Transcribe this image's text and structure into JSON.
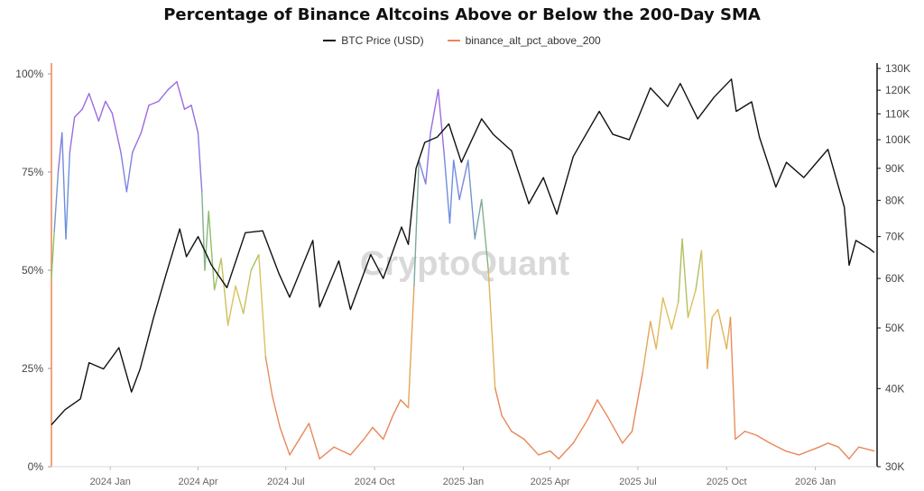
{
  "chart_data": {
    "type": "line",
    "title": "Percentage of Binance Altcoins Above or Below the 200-Day SMA",
    "watermark": "CryptoQuant",
    "legend_position": "top-center",
    "colors": {
      "btc": "#111111",
      "alt_legend": "#e8875a",
      "alt_low": "#e8875a",
      "alt_mid": "#e0c25a",
      "alt_midhigh": "#8cc063",
      "alt_high": "#6b8fe0",
      "alt_top": "#9c6ae0",
      "left_axis": "#e8875a",
      "right_axis": "#111111"
    },
    "x_axis": {
      "start": "2023-11-01",
      "end": "2026-03-06",
      "ticks": [
        {
          "date": "2024-01-01",
          "label": "2024 Jan"
        },
        {
          "date": "2024-04-01",
          "label": "2024 Apr"
        },
        {
          "date": "2024-07-01",
          "label": "2024 Jul"
        },
        {
          "date": "2024-10-01",
          "label": "2024 Oct"
        },
        {
          "date": "2025-01-01",
          "label": "2025 Jan"
        },
        {
          "date": "2025-04-01",
          "label": "2025 Apr"
        },
        {
          "date": "2025-07-01",
          "label": "2025 Jul"
        },
        {
          "date": "2025-10-01",
          "label": "2025 Oct"
        },
        {
          "date": "2026-01-01",
          "label": "2026 Jan"
        }
      ]
    },
    "y_left": {
      "range": [
        0,
        100
      ],
      "ticks": [
        0,
        25,
        50,
        75,
        100
      ],
      "tick_labels": [
        "0%",
        "25%",
        "50%",
        "75%",
        "100%"
      ]
    },
    "y_right": {
      "scale": "log",
      "range": [
        30000,
        130000
      ],
      "ticks": [
        30000,
        40000,
        50000,
        60000,
        70000,
        80000,
        90000,
        100000,
        110000,
        120000,
        130000
      ],
      "tick_labels": [
        "30K",
        "40K",
        "50K",
        "60K",
        "70K",
        "80K",
        "90K",
        "100K",
        "110K",
        "120K",
        "130K"
      ]
    },
    "series": [
      {
        "name": "BTC Price (USD)",
        "axis": "right",
        "points": [
          [
            "2023-11-01",
            35000
          ],
          [
            "2023-11-15",
            37000
          ],
          [
            "2023-12-01",
            38500
          ],
          [
            "2023-12-10",
            44000
          ],
          [
            "2023-12-25",
            43000
          ],
          [
            "2024-01-10",
            46500
          ],
          [
            "2024-01-23",
            39500
          ],
          [
            "2024-02-01",
            43000
          ],
          [
            "2024-02-15",
            52000
          ],
          [
            "2024-02-28",
            61000
          ],
          [
            "2024-03-13",
            72000
          ],
          [
            "2024-03-20",
            65000
          ],
          [
            "2024-04-01",
            70000
          ],
          [
            "2024-04-15",
            63000
          ],
          [
            "2024-05-01",
            58000
          ],
          [
            "2024-05-20",
            71000
          ],
          [
            "2024-06-07",
            71500
          ],
          [
            "2024-06-24",
            61000
          ],
          [
            "2024-07-05",
            56000
          ],
          [
            "2024-07-29",
            69000
          ],
          [
            "2024-08-05",
            54000
          ],
          [
            "2024-08-25",
            64000
          ],
          [
            "2024-09-06",
            53500
          ],
          [
            "2024-09-27",
            65500
          ],
          [
            "2024-10-10",
            60000
          ],
          [
            "2024-10-29",
            72500
          ],
          [
            "2024-11-05",
            68000
          ],
          [
            "2024-11-13",
            90000
          ],
          [
            "2024-11-22",
            99000
          ],
          [
            "2024-12-05",
            101000
          ],
          [
            "2024-12-17",
            106000
          ],
          [
            "2024-12-30",
            92000
          ],
          [
            "2025-01-20",
            108000
          ],
          [
            "2025-02-01",
            102000
          ],
          [
            "2025-02-20",
            96000
          ],
          [
            "2025-03-10",
            79000
          ],
          [
            "2025-03-25",
            87000
          ],
          [
            "2025-04-08",
            76000
          ],
          [
            "2025-04-25",
            94000
          ],
          [
            "2025-05-22",
            111000
          ],
          [
            "2025-06-05",
            102000
          ],
          [
            "2025-06-22",
            100000
          ],
          [
            "2025-07-14",
            121000
          ],
          [
            "2025-08-01",
            113000
          ],
          [
            "2025-08-14",
            123000
          ],
          [
            "2025-09-01",
            108000
          ],
          [
            "2025-09-18",
            117000
          ],
          [
            "2025-10-06",
            125000
          ],
          [
            "2025-10-11",
            111000
          ],
          [
            "2025-10-27",
            115000
          ],
          [
            "2025-11-04",
            101000
          ],
          [
            "2025-11-21",
            84000
          ],
          [
            "2025-12-02",
            92000
          ],
          [
            "2025-12-20",
            87000
          ],
          [
            "2026-01-05",
            93000
          ],
          [
            "2026-01-14",
            96500
          ],
          [
            "2026-01-31",
            78000
          ],
          [
            "2026-02-05",
            63000
          ],
          [
            "2026-02-12",
            69000
          ],
          [
            "2026-02-26",
            67000
          ],
          [
            "2026-03-03",
            66000
          ]
        ]
      },
      {
        "name": "binance_alt_pct_above_200",
        "axis": "left",
        "points": [
          [
            "2023-11-01",
            48
          ],
          [
            "2023-11-04",
            60
          ],
          [
            "2023-11-08",
            75
          ],
          [
            "2023-11-12",
            85
          ],
          [
            "2023-11-16",
            58
          ],
          [
            "2023-11-20",
            80
          ],
          [
            "2023-11-25",
            89
          ],
          [
            "2023-12-03",
            91
          ],
          [
            "2023-12-10",
            95
          ],
          [
            "2023-12-20",
            88
          ],
          [
            "2023-12-27",
            93
          ],
          [
            "2024-01-03",
            90
          ],
          [
            "2024-01-12",
            80
          ],
          [
            "2024-01-18",
            70
          ],
          [
            "2024-01-24",
            80
          ],
          [
            "2024-02-02",
            85
          ],
          [
            "2024-02-10",
            92
          ],
          [
            "2024-02-20",
            93
          ],
          [
            "2024-03-01",
            96
          ],
          [
            "2024-03-10",
            98
          ],
          [
            "2024-03-18",
            91
          ],
          [
            "2024-03-25",
            92
          ],
          [
            "2024-04-01",
            85
          ],
          [
            "2024-04-05",
            70
          ],
          [
            "2024-04-08",
            50
          ],
          [
            "2024-04-12",
            65
          ],
          [
            "2024-04-18",
            45
          ],
          [
            "2024-04-25",
            53
          ],
          [
            "2024-05-02",
            36
          ],
          [
            "2024-05-10",
            46
          ],
          [
            "2024-05-18",
            39
          ],
          [
            "2024-05-26",
            50
          ],
          [
            "2024-06-03",
            54
          ],
          [
            "2024-06-10",
            28
          ],
          [
            "2024-06-17",
            18
          ],
          [
            "2024-06-25",
            10
          ],
          [
            "2024-07-05",
            3
          ],
          [
            "2024-07-15",
            7
          ],
          [
            "2024-07-25",
            11
          ],
          [
            "2024-08-05",
            2
          ],
          [
            "2024-08-20",
            5
          ],
          [
            "2024-09-06",
            3
          ],
          [
            "2024-09-20",
            7
          ],
          [
            "2024-09-29",
            10
          ],
          [
            "2024-10-10",
            7
          ],
          [
            "2024-10-20",
            13
          ],
          [
            "2024-10-28",
            17
          ],
          [
            "2024-11-05",
            15
          ],
          [
            "2024-11-11",
            46
          ],
          [
            "2024-11-16",
            78
          ],
          [
            "2024-11-23",
            72
          ],
          [
            "2024-11-28",
            85
          ],
          [
            "2024-12-06",
            96
          ],
          [
            "2024-12-12",
            80
          ],
          [
            "2024-12-18",
            62
          ],
          [
            "2024-12-22",
            78
          ],
          [
            "2024-12-28",
            68
          ],
          [
            "2025-01-06",
            78
          ],
          [
            "2025-01-13",
            58
          ],
          [
            "2025-01-20",
            68
          ],
          [
            "2025-01-27",
            50
          ],
          [
            "2025-02-03",
            20
          ],
          [
            "2025-02-10",
            13
          ],
          [
            "2025-02-20",
            9
          ],
          [
            "2025-03-05",
            7
          ],
          [
            "2025-03-20",
            3
          ],
          [
            "2025-04-01",
            4
          ],
          [
            "2025-04-10",
            2
          ],
          [
            "2025-04-25",
            6
          ],
          [
            "2025-05-10",
            12
          ],
          [
            "2025-05-20",
            17
          ],
          [
            "2025-05-30",
            13
          ],
          [
            "2025-06-15",
            6
          ],
          [
            "2025-06-25",
            9
          ],
          [
            "2025-07-06",
            24
          ],
          [
            "2025-07-14",
            37
          ],
          [
            "2025-07-20",
            30
          ],
          [
            "2025-07-27",
            43
          ],
          [
            "2025-08-05",
            35
          ],
          [
            "2025-08-12",
            42
          ],
          [
            "2025-08-16",
            58
          ],
          [
            "2025-08-22",
            38
          ],
          [
            "2025-08-30",
            45
          ],
          [
            "2025-09-05",
            55
          ],
          [
            "2025-09-11",
            25
          ],
          [
            "2025-09-16",
            38
          ],
          [
            "2025-09-22",
            40
          ],
          [
            "2025-10-01",
            30
          ],
          [
            "2025-10-05",
            38
          ],
          [
            "2025-10-10",
            7
          ],
          [
            "2025-10-20",
            9
          ],
          [
            "2025-11-01",
            8
          ],
          [
            "2025-11-15",
            6
          ],
          [
            "2025-12-01",
            4
          ],
          [
            "2025-12-15",
            3
          ],
          [
            "2026-01-05",
            5
          ],
          [
            "2026-01-14",
            6
          ],
          [
            "2026-01-25",
            5
          ],
          [
            "2026-02-05",
            2
          ],
          [
            "2026-02-15",
            5
          ],
          [
            "2026-03-03",
            4
          ]
        ]
      }
    ]
  }
}
